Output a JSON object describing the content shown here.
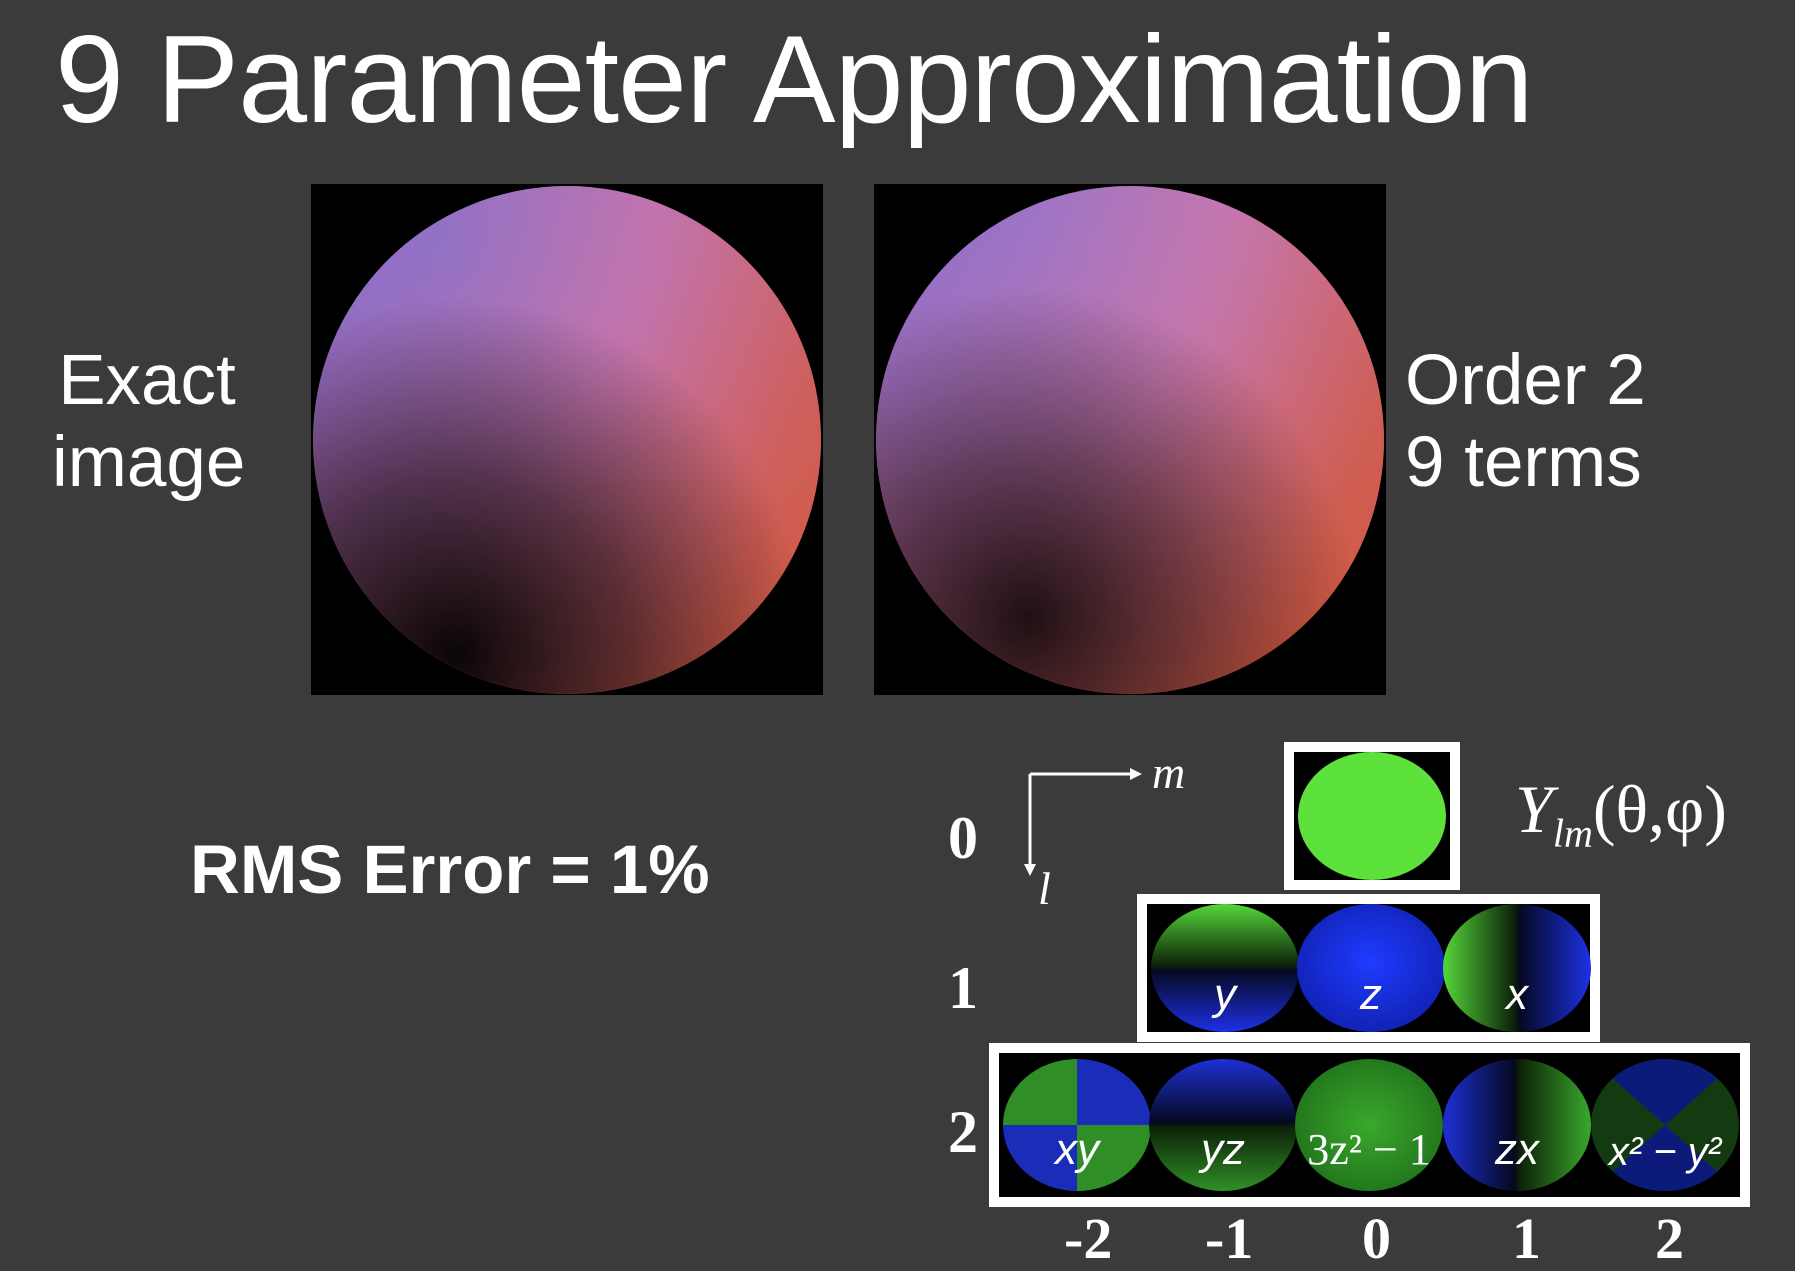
{
  "slide": {
    "title": "9 Parameter Approximation",
    "left_label": [
      "Exact",
      "image"
    ],
    "right_label": [
      "Order 2",
      "9 terms"
    ],
    "rms_error": "RMS Error = 1%"
  },
  "harmonics": {
    "notation_Y": "Y",
    "notation_sub": "lm",
    "notation_args": "(θ,φ)",
    "axis_m_label": "m",
    "axis_l_label": "l",
    "l_labels": [
      "0",
      "1",
      "2"
    ],
    "m_labels": [
      "-2",
      "-1",
      "0",
      "1",
      "2"
    ],
    "row1_labels": [
      "y",
      "z",
      "x"
    ],
    "row2_labels": [
      "xy",
      "yz",
      "3z² − 1",
      "zx",
      "x² − y²"
    ]
  },
  "colors": {
    "background": "#3b3b3b",
    "positive_lobe": "#4fd13a",
    "negative_lobe": "#1a2fe0"
  },
  "icons": {
    "axis": "arrow-axis-icon"
  }
}
